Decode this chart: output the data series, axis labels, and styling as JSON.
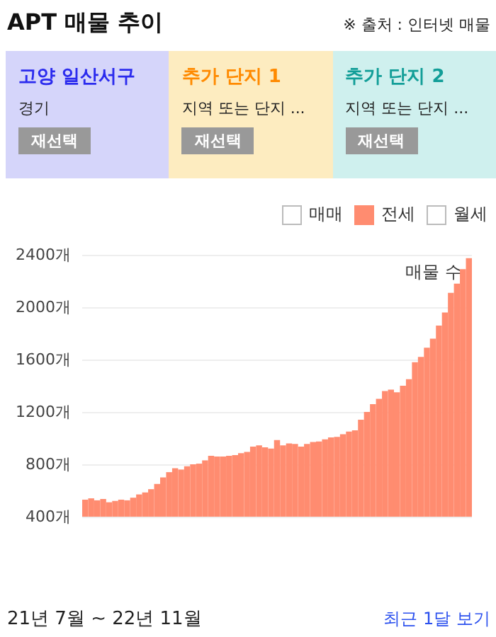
{
  "chart_data": {
    "type": "bar",
    "title": "APT 매물 추이",
    "ylabel": "매물 수",
    "annotations": [
      "※ 출처 : 인터넷 매물",
      "고양 일산서구",
      "경기",
      "재선택",
      "추가 단지 1",
      "지역 또는 단지 ...",
      "재선택",
      "추가 단지 2",
      "지역 또는 단지 ...",
      "재선택",
      "매매",
      "월세",
      "21년 7월 ~ 22년 11월",
      "최근 1달 보기"
    ],
    "categories": [
      null,
      null,
      null,
      null,
      null,
      null,
      null,
      null,
      null,
      null,
      null,
      null,
      null,
      null,
      null,
      null,
      null,
      null,
      null,
      null,
      null,
      null,
      null,
      null,
      null,
      null,
      null,
      null,
      null,
      null,
      null,
      null,
      null,
      null,
      null,
      null,
      null,
      null,
      null,
      null,
      null,
      null,
      null,
      null,
      null,
      null,
      null,
      null,
      null,
      null,
      null,
      null,
      null,
      null,
      null,
      null,
      null,
      null,
      null,
      null,
      null,
      null,
      null,
      null,
      null
    ],
    "series": [
      {
        "name": "전세",
        "color": "#ff8c70",
        "values": [
          530,
          540,
          525,
          535,
          510,
          520,
          530,
          525,
          545,
          570,
          585,
          610,
          650,
          700,
          740,
          770,
          760,
          785,
          800,
          805,
          830,
          865,
          860,
          860,
          865,
          870,
          885,
          895,
          935,
          945,
          930,
          920,
          985,
          945,
          960,
          955,
          935,
          955,
          970,
          975,
          990,
          1005,
          1010,
          1030,
          1050,
          1060,
          1140,
          1200,
          1260,
          1300,
          1360,
          1370,
          1350,
          1400,
          1450,
          1580,
          1620,
          1690,
          1760,
          1860,
          1960,
          2110,
          2180,
          2290,
          2375
        ]
      }
    ],
    "ylim": [
      400,
      2400
    ],
    "yticks": [
      {
        "value": 400,
        "label": "400개"
      },
      {
        "value": 800,
        "label": "800개"
      },
      {
        "value": 1200,
        "label": "1200개"
      },
      {
        "value": 1600,
        "label": "1600개"
      },
      {
        "value": 2000,
        "label": "2000개"
      },
      {
        "value": 2400,
        "label": "2400개"
      }
    ],
    "grid": "y",
    "legend": "top right",
    "tick_labels": "y"
  }
}
